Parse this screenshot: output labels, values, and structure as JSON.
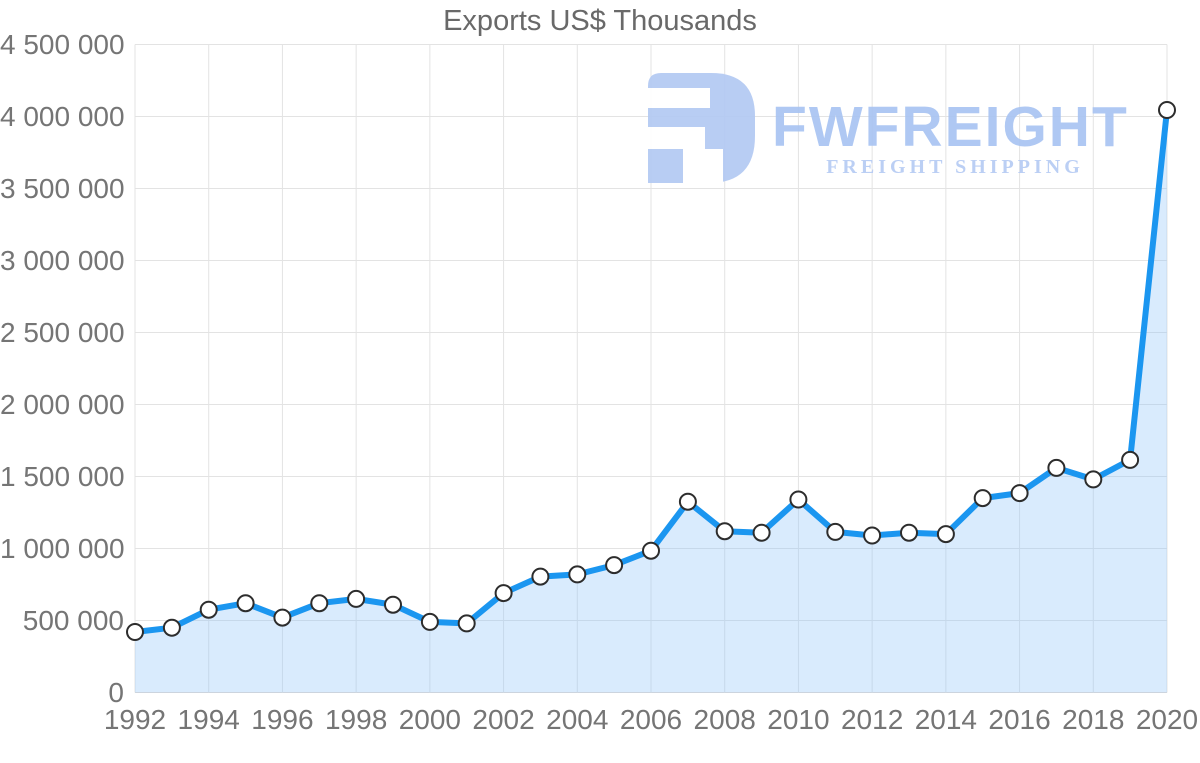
{
  "title": "Exports US$ Thousands",
  "watermark": {
    "brand": "FWFREIGHT",
    "tagline": "FREIGHT SHIPPING",
    "icon": "fwfreight-logo-icon",
    "icon_color": "#b3c9f3",
    "brand_color": "#a9c4f2",
    "tagline_color": "#b6cbf4"
  },
  "chart_data": {
    "type": "area",
    "title": "Exports US$ Thousands",
    "xlabel": "",
    "ylabel": "",
    "x": [
      1992,
      1993,
      1994,
      1995,
      1996,
      1997,
      1998,
      1999,
      2000,
      2001,
      2002,
      2003,
      2004,
      2005,
      2006,
      2007,
      2008,
      2009,
      2010,
      2011,
      2012,
      2013,
      2014,
      2015,
      2016,
      2017,
      2018,
      2019,
      2020
    ],
    "values": [
      420000,
      450000,
      575000,
      620000,
      520000,
      620000,
      650000,
      610000,
      490000,
      480000,
      690000,
      805000,
      820000,
      885000,
      985000,
      1325000,
      1120000,
      1110000,
      1340000,
      1115000,
      1090000,
      1110000,
      1100000,
      1350000,
      1385000,
      1560000,
      1480000,
      1615000,
      4045000
    ],
    "series_name": "Exports US$ Thousands",
    "ylim": [
      0,
      4500000
    ],
    "ytick_step": 500000,
    "ytick_labels": [
      "0",
      "500 000",
      "1 000 000",
      "1 500 000",
      "2 000 000",
      "2 500 000",
      "3 000 000",
      "3 500 000",
      "4 000 000",
      "4 500 000"
    ],
    "xtick_labels": [
      "1992",
      "1994",
      "1996",
      "1998",
      "2000",
      "2002",
      "2004",
      "2006",
      "2008",
      "2010",
      "2012",
      "2014",
      "2016",
      "2018",
      "2020"
    ],
    "xtick_every": 2,
    "grid": true,
    "legend": "none",
    "colors": {
      "line": "#1b96f0",
      "fill": "#90c5f8",
      "fill_opacity": 0.34,
      "grid": "#e3e3e3",
      "zero_line": "#d8d8d8",
      "marker_fill": "#ffffff",
      "marker_stroke": "#2d2d2d",
      "tick_text": "#757575",
      "title_text": "#696969"
    }
  }
}
